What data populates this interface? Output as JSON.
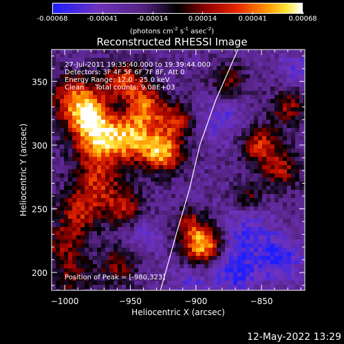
{
  "colorbar": {
    "ticks": [
      "-0.00068",
      "-0.00041",
      "-0.00014",
      "0.00014",
      "0.00041",
      "0.00068"
    ],
    "units_main": "(photons cm",
    "units_exp1": "-2",
    "units_mid1": " s",
    "units_exp2": "-1",
    "units_mid2": " asec",
    "units_exp3": "-2",
    "units_end": ")"
  },
  "chart_data": {
    "type": "heatmap",
    "title": "Reconstructed RHESSI Image",
    "xlabel": "Heliocentric X (arcsec)",
    "ylabel": "Heliocentric Y (arcsec)",
    "xlim": [
      -1010,
      -817
    ],
    "ylim": [
      186,
      375
    ],
    "x_ticks": [
      -1000,
      -950,
      -900,
      -850
    ],
    "y_ticks": [
      200,
      250,
      300,
      350
    ],
    "x_tick_labels": [
      "−1000",
      "−950",
      "−900",
      "−850"
    ],
    "y_tick_labels": [
      "200",
      "250",
      "300",
      "350"
    ],
    "color_range": [
      -0.00068,
      0.00068
    ],
    "limb_curve": [
      [
        -927,
        186
      ],
      [
        -915,
        230
      ],
      [
        -905,
        265
      ],
      [
        -897,
        300
      ],
      [
        -885,
        335
      ],
      [
        -868,
        375
      ]
    ],
    "peak": {
      "x": -980,
      "y": 323
    }
  },
  "annotations": {
    "time": "27-Jul-2011 19:35:40.000 to 19:39:44.000",
    "detectors": "Detectors: 3F 4F 5F 6F 7F 8F, Att 0",
    "energy": "Energy Range: 12.0 - 25.0 keV",
    "clean": "Clean     Total counts: 9.08E+03",
    "peak": "Position of Peak = [-980,323]"
  },
  "footer": {
    "date": "12-May-2022 13:29"
  }
}
